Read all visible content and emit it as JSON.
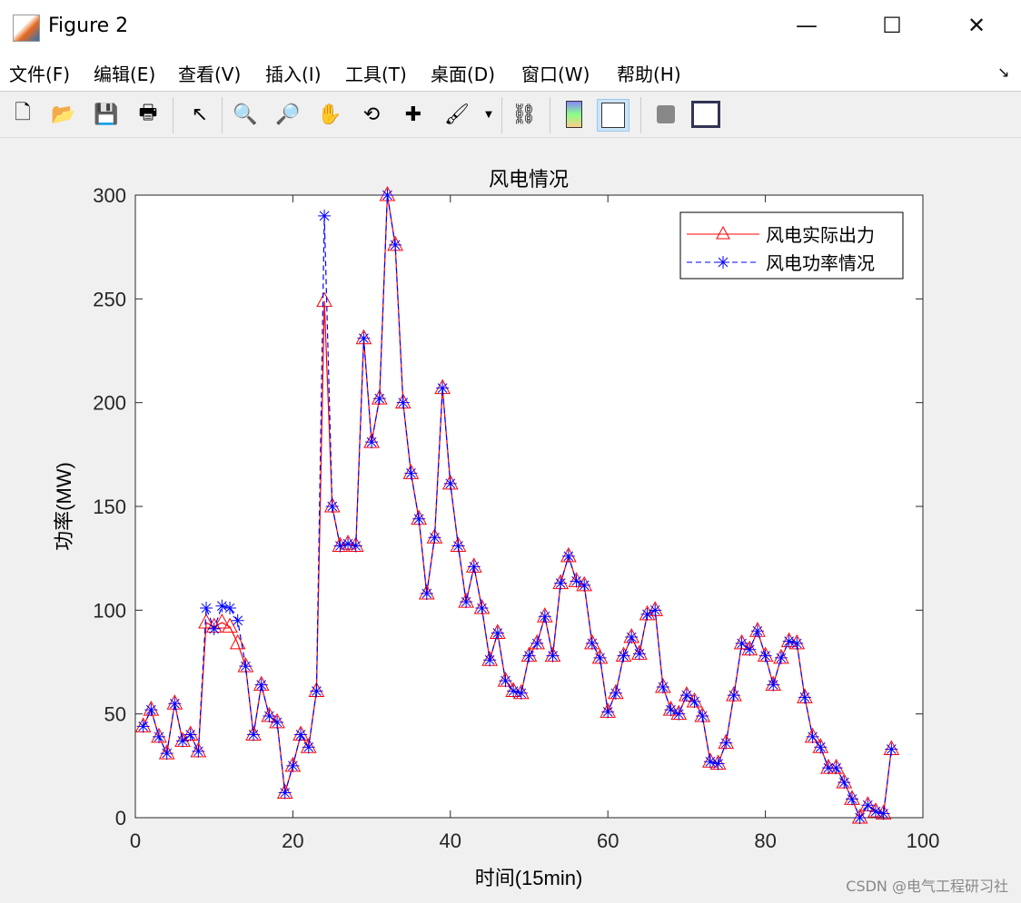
{
  "window": {
    "title": "Figure 2",
    "minimize": "—",
    "maximize": "☐",
    "close": "✕"
  },
  "menu": [
    "文件(F)",
    "编辑(E)",
    "查看(V)",
    "插入(I)",
    "工具(T)",
    "桌面(D)",
    "窗口(W)",
    "帮助(H)"
  ],
  "toolbar": [
    "new-icon",
    "open-icon",
    "save-icon",
    "print-icon",
    "pointer-icon",
    "zoom-in-icon",
    "zoom-out-icon",
    "pan-icon",
    "rotate-icon",
    "data-cursor-icon",
    "brush-icon",
    "link-icon",
    "colorbar-icon",
    "legend-icon",
    "hide-plot-tools-icon",
    "show-plot-tools-icon"
  ],
  "watermark": "CSDN @电气工程研习社",
  "colors": {
    "actual": "#ff0000",
    "power": "#0000ff"
  },
  "chart_data": {
    "type": "line",
    "title": "风电情况",
    "xlabel": "时间(15min)",
    "ylabel": "功率(MW)",
    "xlim": [
      0,
      100
    ],
    "ylim": [
      0,
      300
    ],
    "xticks": [
      0,
      20,
      40,
      60,
      80,
      100
    ],
    "yticks": [
      0,
      50,
      100,
      150,
      200,
      250,
      300
    ],
    "grid": false,
    "legend": "top-right",
    "x": [
      1,
      2,
      3,
      4,
      5,
      6,
      7,
      8,
      9,
      10,
      11,
      12,
      13,
      14,
      15,
      16,
      17,
      18,
      19,
      20,
      21,
      22,
      23,
      24,
      25,
      26,
      27,
      28,
      29,
      30,
      31,
      32,
      33,
      34,
      35,
      36,
      37,
      38,
      39,
      40,
      41,
      42,
      43,
      44,
      45,
      46,
      47,
      48,
      49,
      50,
      51,
      52,
      53,
      54,
      55,
      56,
      57,
      58,
      59,
      60,
      61,
      62,
      63,
      64,
      65,
      66,
      67,
      68,
      69,
      70,
      71,
      72,
      73,
      74,
      75,
      76,
      77,
      78,
      79,
      80,
      81,
      82,
      83,
      84,
      85,
      86,
      87,
      88,
      89,
      90,
      91,
      92,
      93,
      94,
      95,
      96
    ],
    "series": [
      {
        "name": "风电实际出力",
        "marker": "triangle",
        "line": "solid",
        "values": [
          44,
          52,
          39,
          31,
          55,
          37,
          40,
          32,
          94,
          92,
          94,
          92,
          84,
          73,
          40,
          64,
          49,
          46,
          12,
          25,
          40,
          34,
          61,
          249,
          150,
          131,
          132,
          131,
          231,
          181,
          202,
          300,
          276,
          200,
          166,
          144,
          108,
          135,
          207,
          161,
          131,
          104,
          121,
          101,
          76,
          89,
          66,
          61,
          60,
          78,
          84,
          97,
          78,
          113,
          126,
          114,
          112,
          84,
          77,
          51,
          60,
          78,
          87,
          79,
          98,
          100,
          63,
          52,
          50,
          59,
          56,
          49,
          27,
          26,
          36,
          59,
          84,
          81,
          90,
          78,
          64,
          77,
          85,
          84,
          58,
          39,
          34,
          24,
          24,
          17,
          9,
          0,
          6,
          3,
          2,
          33
        ]
      },
      {
        "name": "风电功率情况",
        "marker": "asterisk",
        "line": "dashed",
        "values": [
          44,
          52,
          39,
          31,
          55,
          37,
          40,
          32,
          101,
          91,
          102,
          101,
          95,
          73,
          40,
          64,
          49,
          46,
          12,
          25,
          40,
          34,
          61,
          290,
          150,
          131,
          132,
          131,
          231,
          181,
          202,
          300,
          276,
          200,
          166,
          144,
          108,
          135,
          207,
          161,
          131,
          104,
          121,
          101,
          76,
          89,
          66,
          61,
          60,
          78,
          84,
          97,
          78,
          113,
          126,
          114,
          112,
          84,
          77,
          51,
          60,
          78,
          87,
          79,
          98,
          100,
          63,
          52,
          50,
          59,
          56,
          49,
          27,
          26,
          36,
          59,
          84,
          81,
          90,
          78,
          64,
          77,
          85,
          84,
          58,
          39,
          34,
          24,
          24,
          17,
          9,
          0,
          6,
          3,
          2,
          33
        ]
      }
    ]
  }
}
